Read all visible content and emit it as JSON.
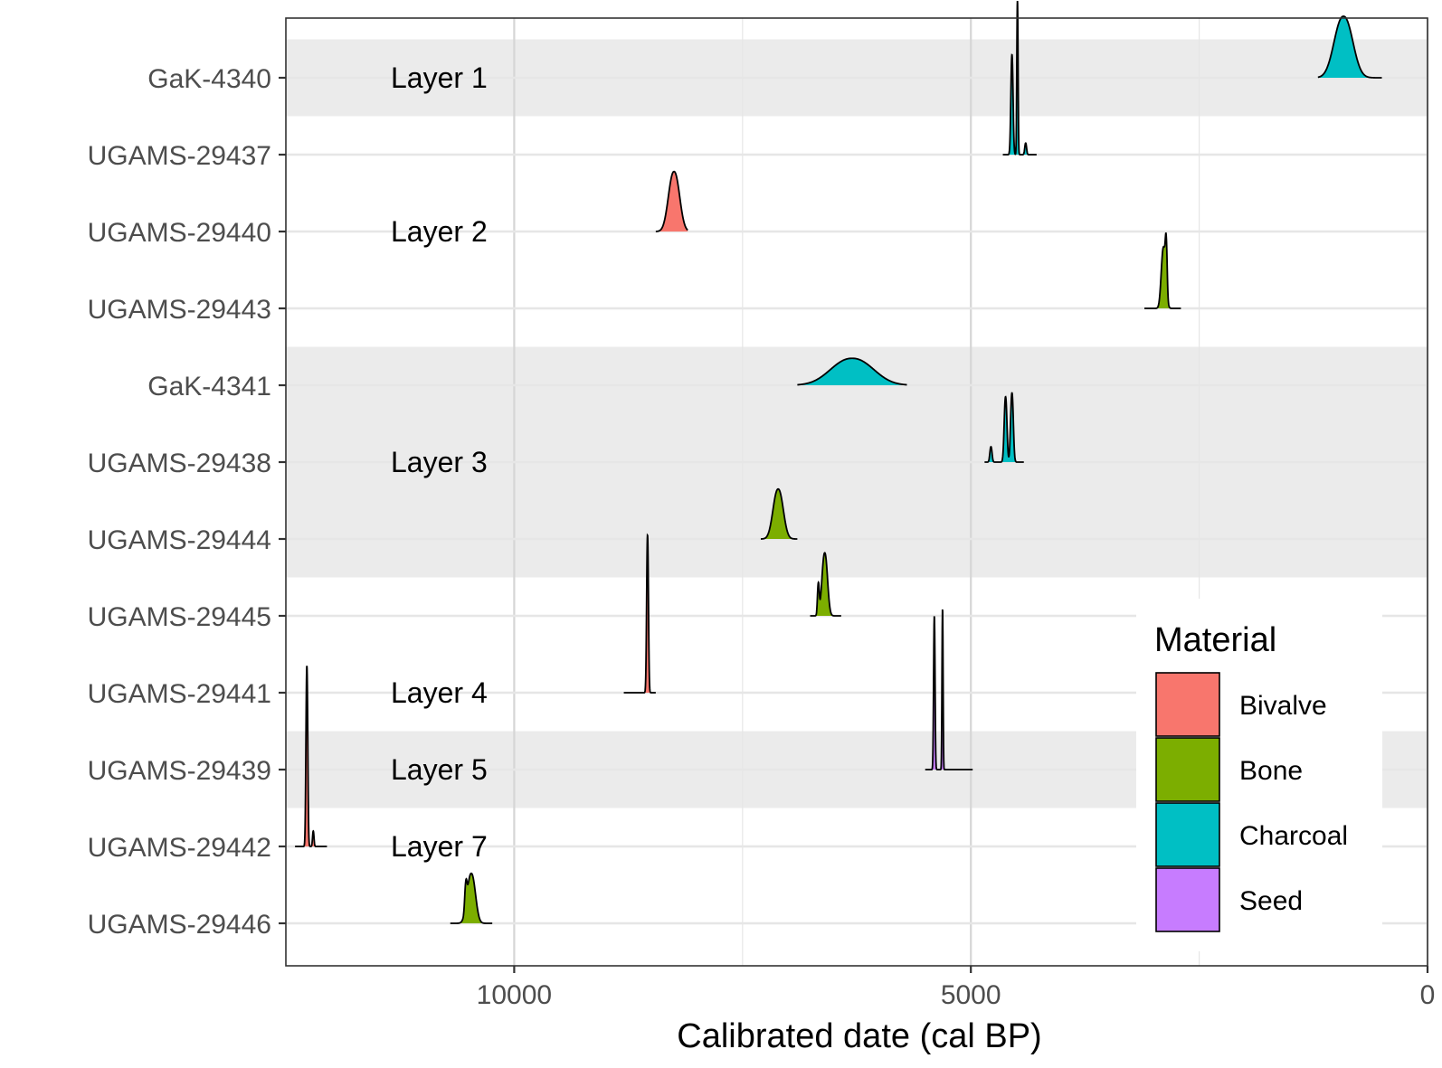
{
  "chart_data": {
    "type": "area",
    "subtype": "ridgeline-density",
    "xlabel": "Calibrated date (cal BP)",
    "xlim": [
      12500,
      0
    ],
    "x_reversed": true,
    "x_ticks": [
      10000,
      5000,
      0
    ],
    "x_tick_labels": [
      "10000",
      "5000",
      "0"
    ],
    "grid": true,
    "legend": {
      "title": "Material",
      "position": "bottom-right",
      "entries": [
        {
          "label": "Bivalve",
          "color": "#F8766D"
        },
        {
          "label": "Bone",
          "color": "#7CAE00"
        },
        {
          "label": "Charcoal",
          "color": "#00BFC4"
        },
        {
          "label": "Seed",
          "color": "#C77CFF"
        }
      ]
    },
    "rows": [
      {
        "sample": "GaK-4340",
        "material": "Charcoal",
        "layer": "Layer 1",
        "range": [
          1200,
          500
        ],
        "peaks": [
          [
            920,
            0.8,
            100
          ]
        ]
      },
      {
        "sample": "UGAMS-29437",
        "material": "Charcoal",
        "layer": "",
        "range": [
          4650,
          4280
        ],
        "peaks": [
          [
            4550,
            1.3,
            12
          ],
          [
            4490,
            2.0,
            7
          ],
          [
            4400,
            0.15,
            10
          ]
        ]
      },
      {
        "sample": "UGAMS-29440",
        "material": "Bivalve",
        "layer": "Layer 2",
        "range": [
          8450,
          8100
        ],
        "peaks": [
          [
            8250,
            0.78,
            60
          ]
        ]
      },
      {
        "sample": "UGAMS-29443",
        "material": "Bone",
        "layer": "",
        "range": [
          3100,
          2700
        ],
        "peaks": [
          [
            2890,
            0.8,
            25
          ],
          [
            2860,
            0.55,
            10
          ]
        ]
      },
      {
        "sample": "GaK-4341",
        "material": "Charcoal",
        "layer": "",
        "range": [
          6900,
          5700
        ],
        "peaks": [
          [
            6300,
            0.35,
            230
          ]
        ]
      },
      {
        "sample": "UGAMS-29438",
        "material": "Charcoal",
        "layer": "Layer 3",
        "range": [
          4850,
          4420
        ],
        "peaks": [
          [
            4780,
            0.2,
            12
          ],
          [
            4620,
            0.85,
            15
          ],
          [
            4550,
            0.9,
            15
          ]
        ]
      },
      {
        "sample": "UGAMS-29444",
        "material": "Bone",
        "layer": "",
        "range": [
          7300,
          6900
        ],
        "peaks": [
          [
            7110,
            0.65,
            55
          ]
        ]
      },
      {
        "sample": "UGAMS-29445",
        "material": "Bone",
        "layer": "",
        "range": [
          6760,
          6420
        ],
        "peaks": [
          [
            6600,
            0.82,
            30
          ],
          [
            6670,
            0.4,
            10
          ]
        ]
      },
      {
        "sample": "UGAMS-29441",
        "material": "Bivalve",
        "layer": "Layer 4",
        "range": [
          8800,
          8450
        ],
        "peaks": [
          [
            8540,
            2.05,
            10
          ],
          [
            8380,
            0.3,
            10
          ]
        ]
      },
      {
        "sample": "UGAMS-29439",
        "material": "Seed",
        "layer": "Layer 5",
        "range": [
          5500,
          4980
        ],
        "peaks": [
          [
            5400,
            2.0,
            8
          ],
          [
            5310,
            2.1,
            6
          ]
        ]
      },
      {
        "sample": "UGAMS-29442",
        "material": "Bivalve",
        "layer": "Layer 7",
        "range": [
          12400,
          12050
        ],
        "peaks": [
          [
            12270,
            2.35,
            10
          ],
          [
            12200,
            0.2,
            8
          ]
        ]
      },
      {
        "sample": "UGAMS-29446",
        "material": "Bone",
        "layer": "",
        "range": [
          10700,
          10240
        ],
        "peaks": [
          [
            10470,
            0.65,
            45
          ],
          [
            10530,
            0.3,
            12
          ]
        ]
      }
    ],
    "layer_bands": [
      {
        "label": "Layer 1",
        "from": "GaK-4340",
        "to": "GaK-4340",
        "shaded": true
      },
      {
        "label": "Layer 2",
        "from": "UGAMS-29437",
        "to": "UGAMS-29443",
        "shaded": false
      },
      {
        "label": "Layer 3",
        "from": "GaK-4341",
        "to": "UGAMS-29444",
        "shaded": true
      },
      {
        "label": "Layer 4",
        "from": "UGAMS-29445",
        "to": "UGAMS-29441",
        "shaded": false
      },
      {
        "label": "Layer 5",
        "from": "UGAMS-29439",
        "to": "UGAMS-29439",
        "shaded": true
      },
      {
        "label": "Layer 7",
        "from": "UGAMS-29442",
        "to": "UGAMS-29446",
        "shaded": false
      }
    ],
    "colors": {
      "band_fill": "#EBEBEB",
      "grid": "#E6E6E6",
      "grid_on_band": "#D6D6D6",
      "axis": "#333333",
      "outline": "#000000"
    }
  }
}
